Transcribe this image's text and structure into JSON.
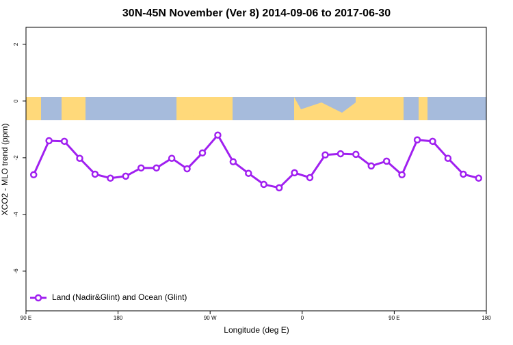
{
  "chart_data": {
    "type": "line",
    "title": "30N-45N November (Ver 8)   2014-09-06 to 2017-06-30",
    "x_label": "Longitude (deg E)",
    "y_label": "XCO2 - MLO trend (ppm)",
    "x": [
      97.5,
      112.5,
      127.5,
      142.5,
      157.5,
      172.5,
      187.5,
      202.5,
      217.5,
      232.5,
      247.5,
      262.5,
      277.5,
      292.5,
      307.5,
      322.5,
      337.5,
      352.5,
      367.5,
      382.5,
      397.5,
      412.5,
      427.5,
      442.5,
      457.5,
      472.5,
      487.5,
      502.5,
      517.5,
      532.5
    ],
    "series": [
      {
        "name": "Land (Nadir&Glint) and Ocean (Glint)",
        "color": "#a020f0",
        "values": [
          -2.6,
          -1.4,
          -1.42,
          -2.02,
          -2.58,
          -2.72,
          -2.65,
          -2.36,
          -2.36,
          -2.02,
          -2.39,
          -1.83,
          -1.2,
          -2.14,
          -2.55,
          -2.94,
          -3.06,
          -2.53,
          -2.7,
          -1.9,
          -1.86,
          -1.88,
          -2.29,
          -2.12,
          -2.6,
          -1.37,
          -1.42,
          -2.02,
          -2.58,
          -2.72
        ]
      }
    ],
    "xlim": [
      90,
      540
    ],
    "xticks": [
      {
        "value": 90,
        "label": "90 E"
      },
      180,
      {
        "value": 270,
        "label": "90 W"
      },
      {
        "value": 360,
        "label": "0"
      },
      {
        "value": 450,
        "label": "90 E"
      },
      {
        "value": 540,
        "label": "180"
      }
    ],
    "ylim": [
      -7.4,
      2.6
    ],
    "yticks": [
      -6,
      -4,
      -2,
      0,
      2
    ],
    "legend": "bottom-left"
  }
}
